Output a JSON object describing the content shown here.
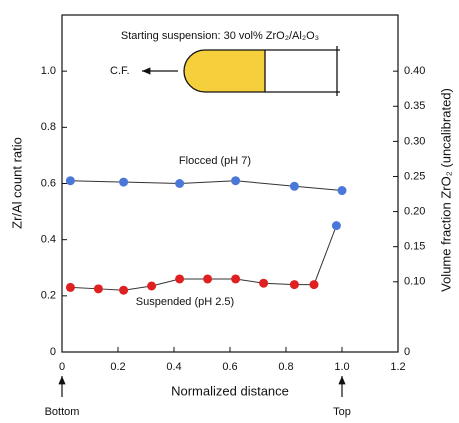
{
  "chart_data": {
    "type": "line",
    "annotation_top": "Starting suspension: 30 vol% ZrO₂/Al₂O₃",
    "annotation_cf": "C.F.",
    "xlabel": "Normalized distance",
    "ylabel": "Zr/Al count ratio",
    "y2label": "Volume fraction ZrO₂ (uncalibrated)",
    "bottom_label": "Bottom",
    "top_label": "Top",
    "xlim": [
      0,
      1.2
    ],
    "xticks": [
      0,
      0.2,
      0.4,
      0.6,
      0.8,
      {
        "value": 1.0,
        "label": "1.0"
      },
      1.2
    ],
    "ylim": [
      0,
      1.2
    ],
    "yticks": [
      0,
      0.2,
      0.4,
      0.6,
      0.8,
      {
        "value": 1.0,
        "label": "1.0"
      }
    ],
    "y2lim": [
      0,
      0.48
    ],
    "y2ticks": [
      0,
      {
        "value": 0.1,
        "label": "0.10"
      },
      0.15,
      {
        "value": 0.2,
        "label": "0.20"
      },
      0.25,
      {
        "value": 0.3,
        "label": "0.30"
      },
      0.35,
      {
        "value": 0.4,
        "label": "0.40"
      }
    ],
    "series": [
      {
        "name": "Flocced (pH 7)",
        "color": "#4a78d8",
        "x": [
          0.03,
          0.22,
          0.42,
          0.62,
          0.83,
          1.0
        ],
        "values": [
          0.61,
          0.605,
          0.6,
          0.61,
          0.59,
          0.575
        ]
      },
      {
        "name": "Suspended (pH 2.5)",
        "color": "#e02020",
        "x": [
          0.03,
          0.13,
          0.22,
          0.32,
          0.42,
          0.52,
          0.62,
          0.72,
          0.83,
          0.9,
          0.98
        ],
        "values": [
          0.23,
          0.225,
          0.22,
          0.235,
          0.26,
          0.26,
          0.26,
          0.245,
          0.24,
          0.24,
          0.45
        ],
        "point_colors": [
          "#e02020",
          "#e02020",
          "#e02020",
          "#e02020",
          "#e02020",
          "#e02020",
          "#e02020",
          "#e02020",
          "#e02020",
          "#e02020",
          "#4a78d8"
        ]
      }
    ]
  }
}
